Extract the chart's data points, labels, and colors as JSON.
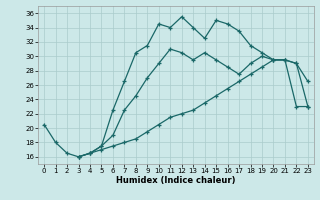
{
  "xlabel": "Humidex (Indice chaleur)",
  "bg_color": "#cce8e8",
  "line_color": "#1a6868",
  "grid_color": "#aacccc",
  "xlim": [
    -0.5,
    23.5
  ],
  "ylim": [
    15.0,
    37.0
  ],
  "xticks": [
    0,
    1,
    2,
    3,
    4,
    5,
    6,
    7,
    8,
    9,
    10,
    11,
    12,
    13,
    14,
    15,
    16,
    17,
    18,
    19,
    20,
    21,
    22,
    23
  ],
  "yticks": [
    16,
    18,
    20,
    22,
    24,
    26,
    28,
    30,
    32,
    34,
    36
  ],
  "line1_x": [
    0,
    1,
    2,
    3,
    4,
    5,
    6,
    7,
    8,
    9,
    10,
    11,
    12,
    13,
    14,
    15,
    16,
    17,
    18,
    19,
    20,
    21,
    22,
    23
  ],
  "line1_y": [
    20.5,
    18.0,
    16.5,
    16.0,
    16.5,
    17.5,
    22.5,
    26.5,
    30.5,
    31.5,
    34.5,
    34.0,
    35.5,
    34.0,
    32.5,
    35.0,
    34.5,
    33.5,
    31.5,
    30.5,
    29.5,
    29.5,
    29.0,
    26.5
  ],
  "line2_x": [
    3,
    4,
    5,
    6,
    7,
    8,
    9,
    10,
    11,
    12,
    13,
    14,
    15,
    16,
    17,
    18,
    19,
    20,
    21,
    22,
    23
  ],
  "line2_y": [
    16.0,
    16.5,
    17.5,
    19.0,
    22.5,
    24.5,
    27.0,
    29.0,
    31.0,
    30.5,
    29.5,
    30.5,
    29.5,
    28.5,
    27.5,
    29.0,
    30.0,
    29.5,
    29.5,
    29.0,
    23.0
  ],
  "line3_x": [
    3,
    4,
    5,
    6,
    7,
    8,
    9,
    10,
    11,
    12,
    13,
    14,
    15,
    16,
    17,
    18,
    19,
    20,
    21,
    22,
    23
  ],
  "line3_y": [
    16.0,
    16.5,
    17.0,
    17.5,
    18.0,
    18.5,
    19.5,
    20.5,
    21.5,
    22.0,
    22.5,
    23.5,
    24.5,
    25.5,
    26.5,
    27.5,
    28.5,
    29.5,
    29.5,
    23.0,
    23.0
  ]
}
